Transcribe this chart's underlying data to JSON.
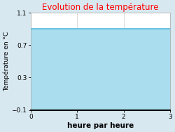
{
  "title": "Evolution de la température",
  "title_color": "#ff0000",
  "xlabel": "heure par heure",
  "ylabel": "Température en °C",
  "xlim": [
    0,
    3
  ],
  "ylim": [
    -0.1,
    1.1
  ],
  "yticks": [
    -0.1,
    0.3,
    0.7,
    1.1
  ],
  "xticks": [
    0,
    1,
    2,
    3
  ],
  "line_color": "#55bbdd",
  "fill_color": "#aaddee",
  "background_color": "#d8e8f0",
  "plot_bg_color": "#ffffff",
  "line_width": 1.2,
  "x_data": [
    0,
    3
  ],
  "y_data": [
    0.9,
    0.9
  ],
  "title_fontsize": 8.5,
  "xlabel_fontsize": 7.5,
  "ylabel_fontsize": 6.5,
  "tick_fontsize": 6.5
}
